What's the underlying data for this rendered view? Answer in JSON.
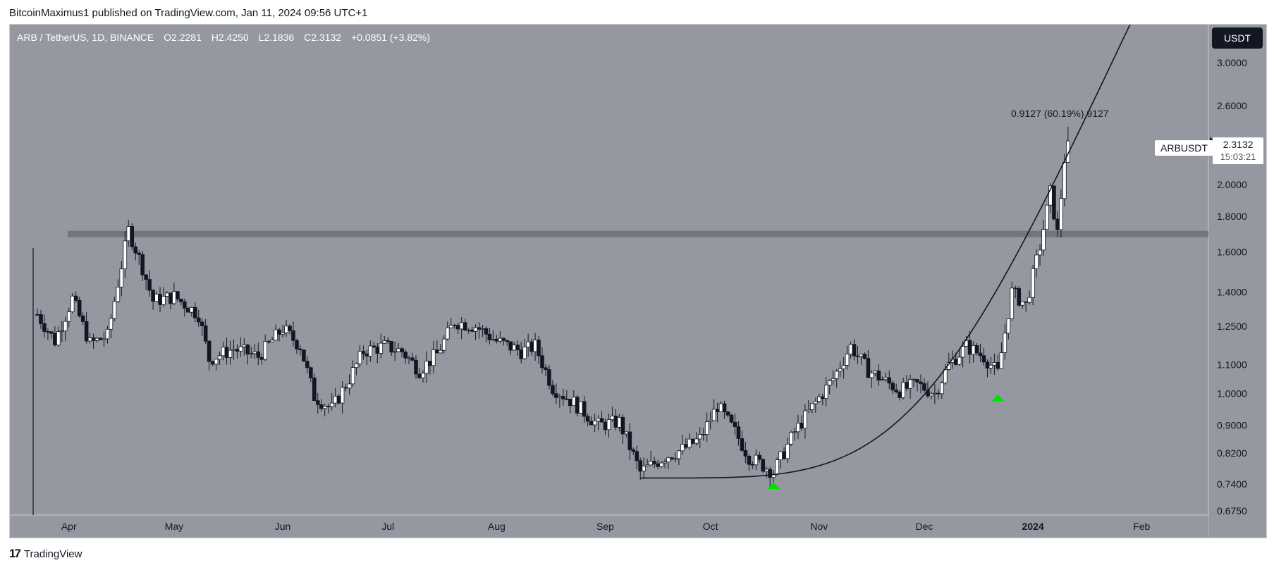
{
  "header": {
    "publisher": "BitcoinMaximus1 published on TradingView.com, Jan 11, 2024 09:56 UTC+1"
  },
  "legend": {
    "symbol": "ARB / TetherUS, 1D, BINANCE",
    "o_label": "O",
    "o": "2.2281",
    "h_label": "H",
    "h": "2.4250",
    "l_label": "L",
    "l": "2.1836",
    "c_label": "C",
    "c": "2.3132",
    "change": "+0.0851 (+3.82%)"
  },
  "currency_button": "USDT",
  "price_tag": {
    "symbol": "ARBUSDT",
    "price": "2.3132",
    "countdown": "15:03:21"
  },
  "measure_label": "0.9127 (60.19%) 9127",
  "footer": {
    "brand": "TradingView"
  },
  "colors": {
    "background": "#9598a1",
    "up": "#ffffff",
    "down": "#131722",
    "support": "#6e7079",
    "arrow": "#00e100",
    "curve": "#131722"
  },
  "chart_data": {
    "type": "candlestick",
    "symbol": "ARBUSDT",
    "timeframe": "1D",
    "exchange": "BINANCE",
    "scale": "log",
    "y_ticks": [
      "3.0000",
      "2.6000",
      "2.0000",
      "1.8000",
      "1.6000",
      "1.4000",
      "1.2500",
      "1.1000",
      "1.0000",
      "0.9000",
      "0.8200",
      "0.7400",
      "0.6750"
    ],
    "x_ticks": [
      "Apr",
      "May",
      "Jun",
      "Jul",
      "Aug",
      "Sep",
      "Oct",
      "Nov",
      "Dec",
      "2024",
      "Feb"
    ],
    "ylim": [
      0.675,
      3.6
    ],
    "date_range": [
      "2023-03-23",
      "2024-02-10"
    ],
    "support_level": 1.7,
    "close_points": [
      [
        "2023-03-23",
        1.3
      ],
      [
        "2023-03-28",
        1.19
      ],
      [
        "2023-04-02",
        1.37
      ],
      [
        "2023-04-07",
        1.18
      ],
      [
        "2023-04-12",
        1.21
      ],
      [
        "2023-04-18",
        1.72
      ],
      [
        "2023-04-22",
        1.52
      ],
      [
        "2023-04-25",
        1.36
      ],
      [
        "2023-05-01",
        1.38
      ],
      [
        "2023-05-08",
        1.3
      ],
      [
        "2023-05-11",
        1.12
      ],
      [
        "2023-05-18",
        1.16
      ],
      [
        "2023-05-25",
        1.13
      ],
      [
        "2023-06-01",
        1.24
      ],
      [
        "2023-06-06",
        1.17
      ],
      [
        "2023-06-10",
        0.99
      ],
      [
        "2023-06-15",
        0.95
      ],
      [
        "2023-06-20",
        1.05
      ],
      [
        "2023-06-24",
        1.15
      ],
      [
        "2023-06-30",
        1.17
      ],
      [
        "2023-07-05",
        1.15
      ],
      [
        "2023-07-10",
        1.08
      ],
      [
        "2023-07-15",
        1.14
      ],
      [
        "2023-07-20",
        1.27
      ],
      [
        "2023-07-26",
        1.25
      ],
      [
        "2023-08-01",
        1.19
      ],
      [
        "2023-08-08",
        1.15
      ],
      [
        "2023-08-12",
        1.17
      ],
      [
        "2023-08-17",
        1.02
      ],
      [
        "2023-08-23",
        0.97
      ],
      [
        "2023-08-30",
        0.9
      ],
      [
        "2023-09-05",
        0.91
      ],
      [
        "2023-09-11",
        0.77
      ],
      [
        "2023-09-18",
        0.81
      ],
      [
        "2023-09-23",
        0.83
      ],
      [
        "2023-09-28",
        0.86
      ],
      [
        "2023-10-03",
        0.96
      ],
      [
        "2023-10-08",
        0.88
      ],
      [
        "2023-10-12",
        0.81
      ],
      [
        "2023-10-19",
        0.77
      ],
      [
        "2023-10-25",
        0.88
      ],
      [
        "2023-10-31",
        0.97
      ],
      [
        "2023-11-05",
        1.05
      ],
      [
        "2023-11-10",
        1.17
      ],
      [
        "2023-11-15",
        1.08
      ],
      [
        "2023-11-20",
        1.04
      ],
      [
        "2023-11-24",
        1.01
      ],
      [
        "2023-11-29",
        1.03
      ],
      [
        "2023-12-04",
        1.0
      ],
      [
        "2023-12-08",
        1.1
      ],
      [
        "2023-12-13",
        1.17
      ],
      [
        "2023-12-18",
        1.13
      ],
      [
        "2023-12-22",
        1.07
      ],
      [
        "2023-12-26",
        1.4
      ],
      [
        "2023-12-30",
        1.34
      ],
      [
        "2024-01-03",
        1.63
      ],
      [
        "2024-01-06",
        1.95
      ],
      [
        "2024-01-08",
        1.7
      ],
      [
        "2024-01-10",
        2.18
      ],
      [
        "2024-01-11",
        2.3132
      ]
    ],
    "annotations": [
      {
        "type": "text",
        "text": "0.9127 (60.19%) 9127"
      },
      {
        "type": "curve",
        "label": "parabolic support"
      },
      {
        "type": "arrow",
        "date": "2023-10-19",
        "value": 0.74
      },
      {
        "type": "arrow",
        "date": "2023-12-22",
        "value": 0.99
      }
    ]
  }
}
